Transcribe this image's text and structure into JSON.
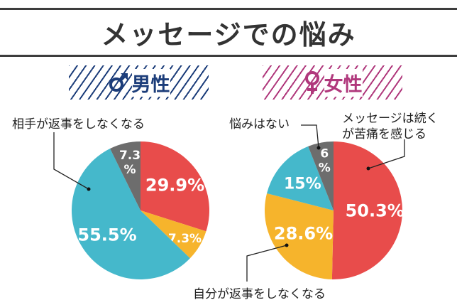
{
  "title": "メッセージでの悩み",
  "colors": {
    "red": "#e84c4b",
    "yellow": "#f6b42c",
    "teal": "#45b8cb",
    "gray": "#6d6d6d",
    "male": "#1c3d7a",
    "female": "#b0387c"
  },
  "chart_data": [
    {
      "type": "pie",
      "title": "男性",
      "icon": "male-symbol-icon",
      "slices": [
        {
          "label": "メッセージは続くが苦痛を感じる",
          "value": 29.9,
          "display": "29.9%",
          "color": "#e84c4b"
        },
        {
          "label": "自分が返事をしなくなる",
          "value": 7.3,
          "display": "7.3%",
          "color": "#f6b42c"
        },
        {
          "label": "相手が返事をしなくなる",
          "value": 55.5,
          "display": "55.5%",
          "color": "#45b8cb"
        },
        {
          "label": "悩みはない",
          "value": 7.3,
          "display_lines": [
            "7.3",
            "%"
          ],
          "color": "#6d6d6d"
        }
      ],
      "callouts": [
        "相手が返事をしなくなる"
      ]
    },
    {
      "type": "pie",
      "title": "女性",
      "icon": "female-symbol-icon",
      "slices": [
        {
          "label": "メッセージは続くが苦痛を感じる",
          "value": 50.3,
          "display": "50.3%",
          "color": "#e84c4b"
        },
        {
          "label": "自分が返事をしなくなる",
          "value": 28.6,
          "display": "28.6%",
          "color": "#f6b42c"
        },
        {
          "label": "相手が返事をしなくなる",
          "value": 15,
          "display": "15%",
          "color": "#45b8cb"
        },
        {
          "label": "悩みはない",
          "value": 6,
          "display_lines": [
            "6",
            "%"
          ],
          "color": "#6d6d6d"
        }
      ],
      "callouts": [
        "悩みはない",
        "メッセージは続く",
        "が苦痛を感じる",
        "自分が返事をしなくなる"
      ]
    }
  ]
}
